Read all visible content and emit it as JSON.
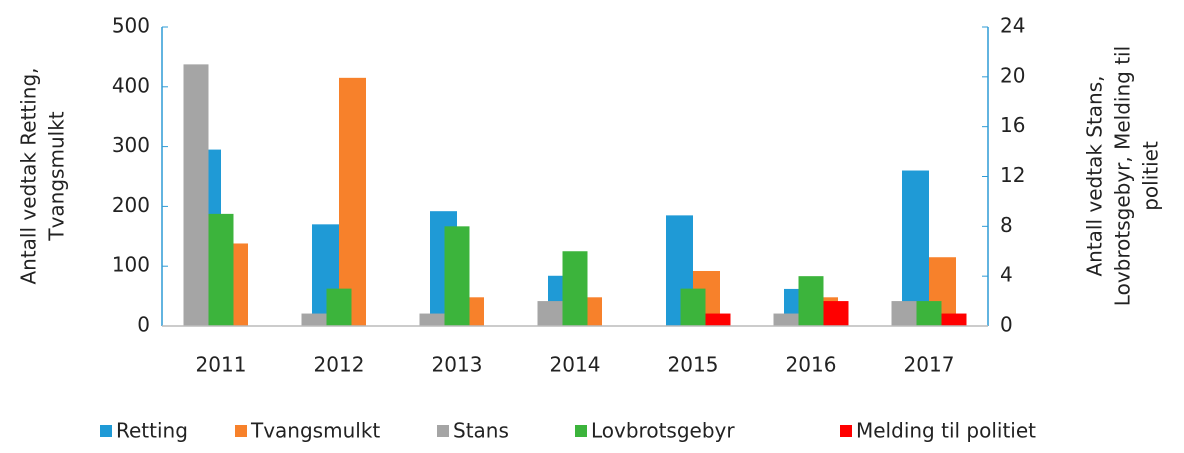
{
  "chart_data": {
    "type": "bar",
    "categories": [
      "2011",
      "2012",
      "2013",
      "2014",
      "2015",
      "2016",
      "2017"
    ],
    "series": [
      {
        "name": "Retting",
        "color": "#1f9ad6",
        "values": [
          295,
          170,
          192,
          84,
          185,
          62,
          260
        ]
      },
      {
        "name": "Tvangsmulkt",
        "color": "#f7812b",
        "values": [
          138,
          415,
          48,
          48,
          92,
          48,
          115
        ]
      },
      {
        "name": "Stans",
        "color": "#a5a5a5",
        "axis": "y2",
        "values": [
          21,
          1,
          1,
          2,
          0,
          1,
          2
        ]
      },
      {
        "name": "Lovbrotsgebyr",
        "color": "#3cb43c",
        "axis": "y2",
        "values": [
          9,
          3,
          8,
          6,
          3,
          4,
          2
        ]
      },
      {
        "name": "Melding til politiet",
        "color": "#ff0000",
        "axis": "y2",
        "values": [
          0,
          0,
          0,
          0,
          1,
          2,
          1
        ]
      }
    ],
    "ylabel": [
      "Antall vedtak Retting,",
      "Tvangsmulkt"
    ],
    "y2label": [
      "Antall vedtak Stans,",
      "Lovbrotsgebyr, Melding til",
      "politiet"
    ],
    "ylim": [
      0,
      500
    ],
    "yticks": [
      0,
      100,
      200,
      300,
      400,
      500
    ],
    "y2lim": [
      0,
      24
    ],
    "y2ticks": [
      0,
      4,
      8,
      12,
      16,
      20,
      24
    ],
    "legend": "bottom"
  }
}
